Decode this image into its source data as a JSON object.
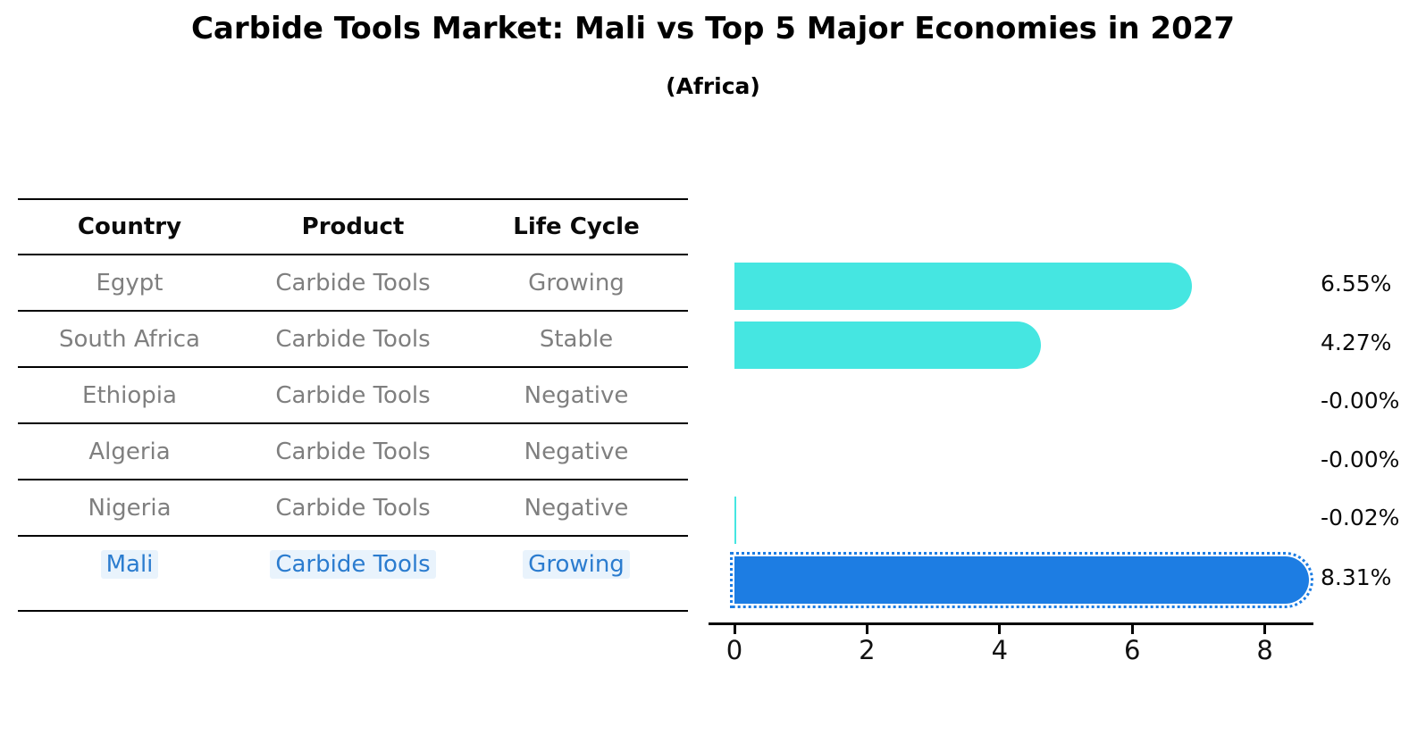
{
  "title": "Carbide Tools Market: Mali vs Top 5 Major Economies in 2027",
  "subtitle": "(Africa)",
  "table": {
    "headers": [
      "Country",
      "Product",
      "Life Cycle"
    ],
    "rows": [
      {
        "country": "Egypt",
        "product": "Carbide Tools",
        "life_cycle": "Growing",
        "highlighted": false
      },
      {
        "country": "South Africa",
        "product": "Carbide Tools",
        "life_cycle": "Stable",
        "highlighted": false
      },
      {
        "country": "Ethiopia",
        "product": "Carbide Tools",
        "life_cycle": "Negative",
        "highlighted": false
      },
      {
        "country": "Algeria",
        "product": "Carbide Tools",
        "life_cycle": "Negative",
        "highlighted": false
      },
      {
        "country": "Nigeria",
        "product": "Carbide Tools",
        "life_cycle": "Negative",
        "highlighted": false
      },
      {
        "country": "Mali",
        "product": "Carbide Tools",
        "life_cycle": "Growing",
        "highlighted": true
      }
    ]
  },
  "chart_data": {
    "type": "bar",
    "orientation": "horizontal",
    "categories": [
      "Egypt",
      "South Africa",
      "Ethiopia",
      "Algeria",
      "Nigeria",
      "Mali"
    ],
    "values": [
      6.55,
      4.27,
      -0.0,
      -0.0,
      -0.02,
      8.31
    ],
    "value_labels": [
      "6.55%",
      "4.27%",
      "-0.00%",
      "-0.00%",
      "-0.02%",
      "8.31%"
    ],
    "xticks": [
      "0",
      "2",
      "4",
      "6",
      "8"
    ],
    "xtick_values": [
      0,
      2,
      4,
      6,
      8
    ],
    "xlim": [
      -0.4,
      8.75
    ],
    "grid": false,
    "legend_position": "none",
    "bar_color": "#45e6e1",
    "highlight_color": "#1d7de3",
    "highlight_index": 5,
    "highlight_style": "dotted-edge"
  }
}
